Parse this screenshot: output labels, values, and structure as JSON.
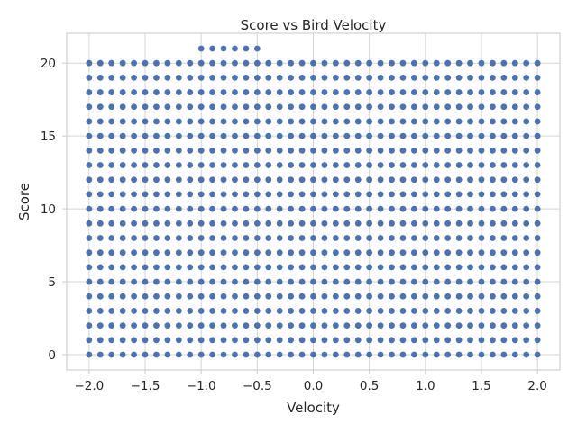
{
  "chart_data": {
    "type": "scatter",
    "title": "Score vs Bird Velocity",
    "xlabel": "Velocity",
    "ylabel": "Score",
    "xlim": [
      -2.2,
      2.2
    ],
    "ylim": [
      -1.05,
      22.05
    ],
    "x_ticks": [
      -2.0,
      -1.5,
      -1.0,
      -0.5,
      0.0,
      0.5,
      1.0,
      1.5,
      2.0
    ],
    "x_tick_labels": [
      "−2.0",
      "−1.5",
      "−1.0",
      "−0.5",
      "0.0",
      "0.5",
      "1.0",
      "1.5",
      "2.0"
    ],
    "y_ticks": [
      0,
      5,
      10,
      15,
      20
    ],
    "y_tick_labels": [
      "0",
      "5",
      "10",
      "15",
      "20"
    ],
    "grid": true,
    "legend": "none",
    "point_color": "#4c72b0",
    "series": [
      {
        "grid_x": {
          "start": -2.0,
          "stop": 2.0,
          "step": 0.1
        },
        "grid_y": {
          "start": 0,
          "stop": 20,
          "step": 1
        },
        "extra_points": [
          [
            -1.0,
            21
          ],
          [
            -0.9,
            21
          ],
          [
            -0.8,
            21
          ],
          [
            -0.7,
            21
          ],
          [
            -0.6,
            21
          ],
          [
            -0.5,
            21
          ]
        ]
      }
    ]
  }
}
